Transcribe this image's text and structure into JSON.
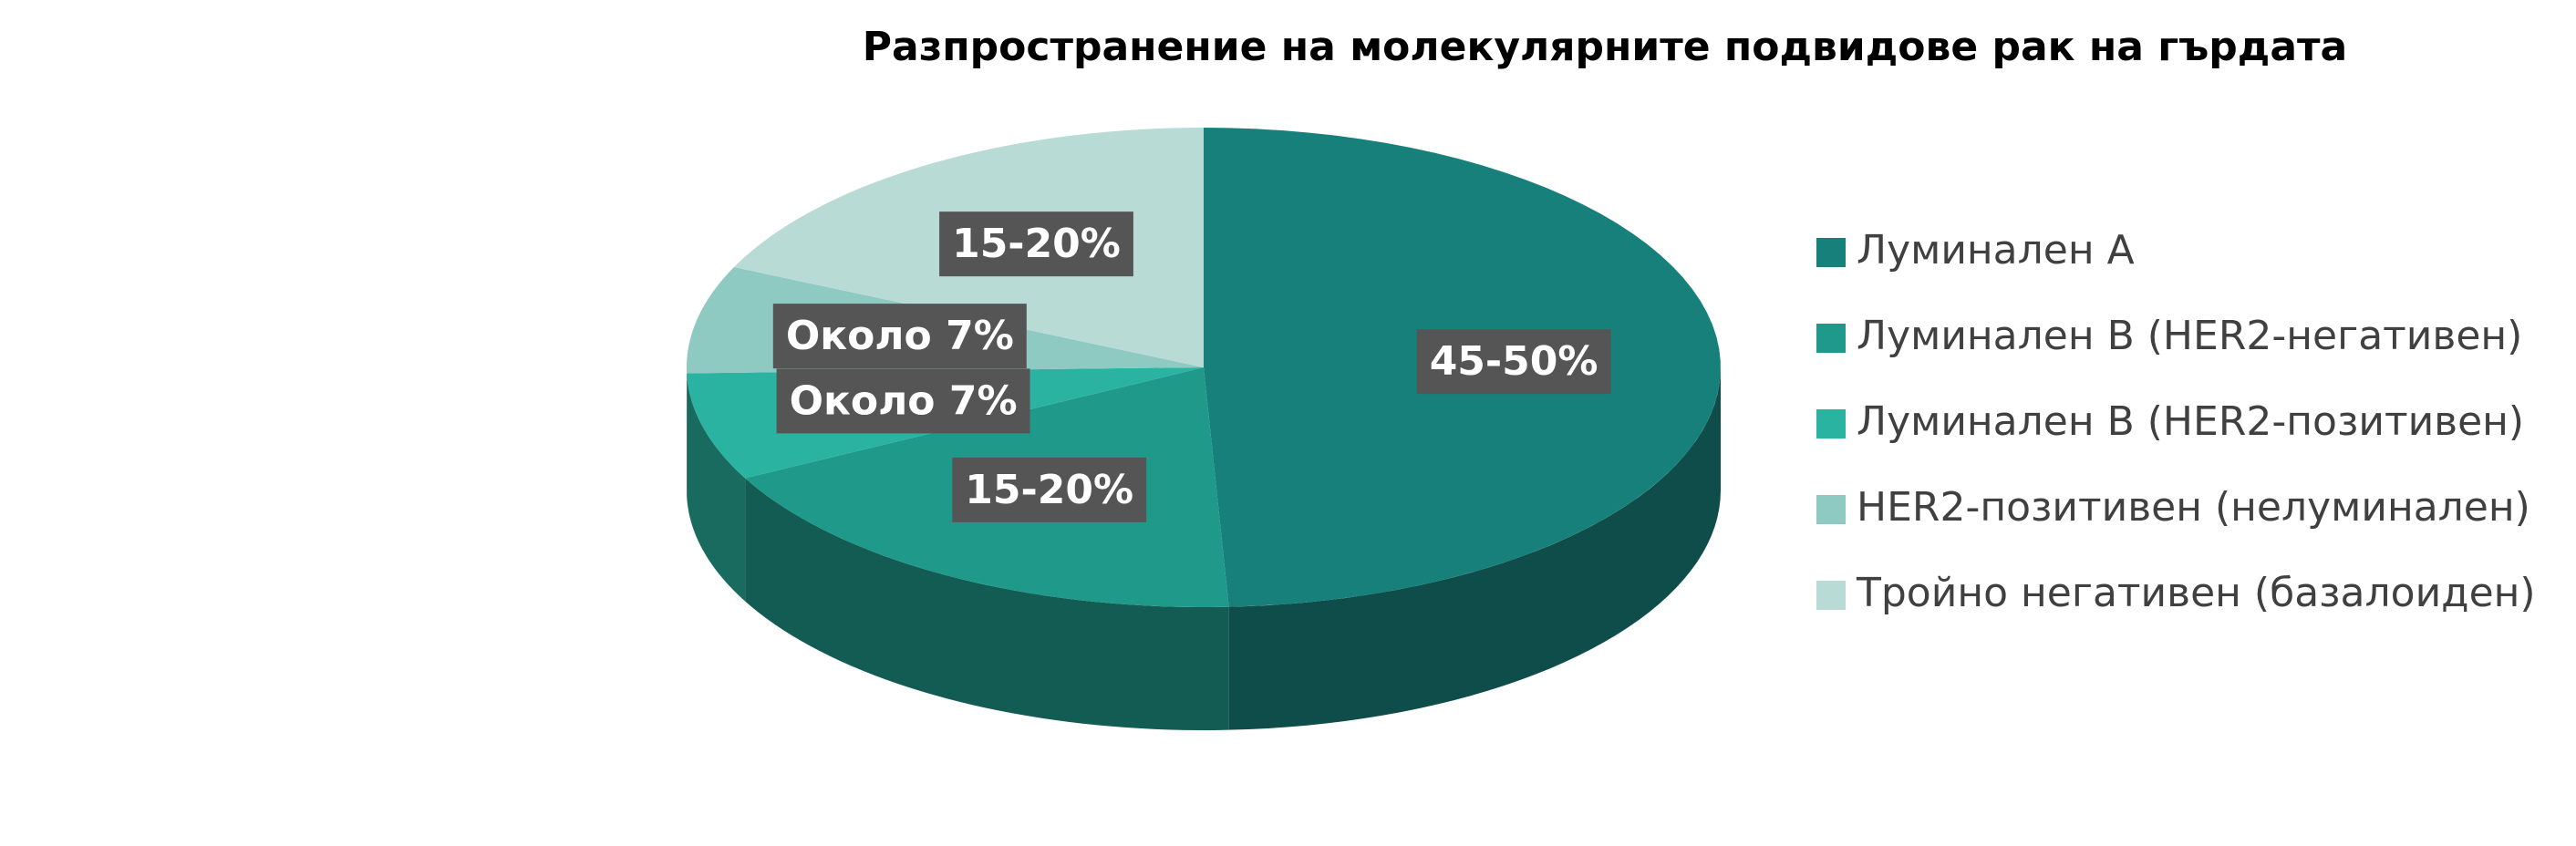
{
  "chart_data": {
    "type": "pie3d",
    "title": "Разпространение на молекулярните подвидове рак на гърдата",
    "categories": [
      "Луминален А",
      "Луминален В (HER2-негативен)",
      "Луминален В (HER2-позитивен)",
      "HER2-позитивен (нелуминален)",
      "Тройно негативен (базалоиден)"
    ],
    "values": [
      47.5,
      17.5,
      7,
      7,
      17.5
    ],
    "value_labels": [
      "45-50%",
      "15-20%",
      "Около 7%",
      "Около 7%",
      "15-20%"
    ],
    "colors": [
      "#17807a",
      "#1f9a8a",
      "#2ab3a0",
      "#8ec9c2",
      "#b8dbd5"
    ],
    "legend": "right"
  }
}
